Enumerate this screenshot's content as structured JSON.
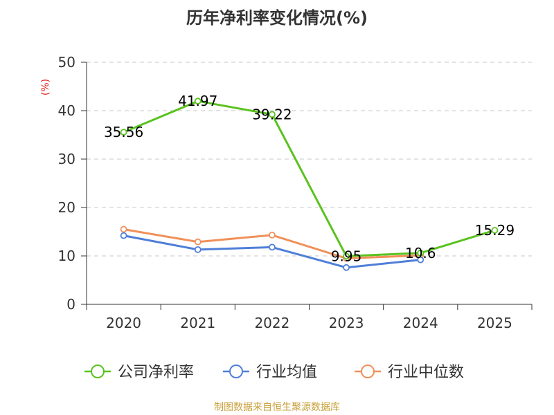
{
  "title": "历年净利率变化情况(%)",
  "source": "制图数据来自恒生聚源数据库",
  "chart_data": {
    "type": "line",
    "title": "历年净利率变化情况(%)",
    "xlabel": "",
    "ylabel": "(%)",
    "categories": [
      "2020",
      "2021",
      "2022",
      "2023",
      "2024",
      "2025"
    ],
    "ylim": [
      0,
      50
    ],
    "yticks": [
      0,
      10,
      20,
      30,
      40,
      50
    ],
    "grid": true,
    "legend_position": "bottom",
    "series": [
      {
        "name": "公司净利率",
        "color": "#5ac21f",
        "values": [
          35.56,
          41.97,
          39.22,
          9.95,
          10.6,
          15.29
        ],
        "labels": [
          "35.56",
          "41.97",
          "39.22",
          "9.95",
          "10.6",
          "15.29"
        ]
      },
      {
        "name": "行业均值",
        "color": "#4f7fd8",
        "values": [
          14.2,
          11.3,
          11.8,
          7.6,
          9.2,
          null
        ]
      },
      {
        "name": "行业中位数",
        "color": "#f0905a",
        "values": [
          15.5,
          12.9,
          14.3,
          9.5,
          10.1,
          null
        ]
      }
    ]
  }
}
